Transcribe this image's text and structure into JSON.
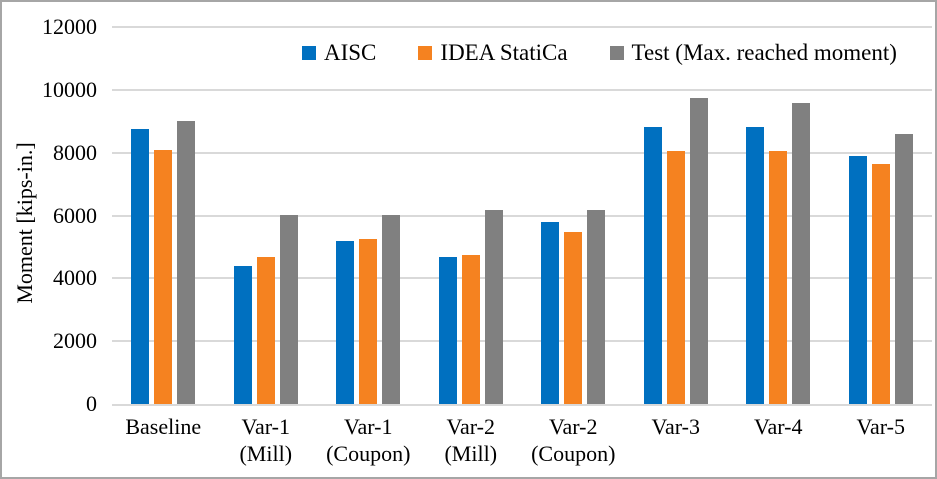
{
  "chart_data": {
    "type": "bar",
    "title": "",
    "xlabel": "",
    "ylabel": "Moment [kips-in.]",
    "ylim": [
      0,
      12000
    ],
    "ytick_step": 2000,
    "grid": true,
    "legend_position": "top",
    "categories": [
      "Baseline",
      "Var-1\n(Mill)",
      "Var-1\n(Coupon)",
      "Var-2\n(Mill)",
      "Var-2\n(Coupon)",
      "Var-3",
      "Var-4",
      "Var-5"
    ],
    "series": [
      {
        "name": "AISC",
        "color": "#0070C0",
        "values": [
          8750,
          4400,
          5200,
          4680,
          5800,
          8820,
          8820,
          7890
        ]
      },
      {
        "name": "IDEA StatiCa",
        "color": "#F58220",
        "values": [
          8100,
          4680,
          5250,
          4750,
          5470,
          8050,
          8040,
          7650
        ]
      },
      {
        "name": "Test (Max. reached moment)",
        "color": "#808080",
        "values": [
          9000,
          6010,
          6030,
          6180,
          6180,
          9730,
          9570,
          8590
        ]
      }
    ],
    "colors": {
      "gridline": "#d9d9d9",
      "axis_line": "#d9d9d9",
      "text": "#000000",
      "frame_border": "#a6a6a6"
    }
  }
}
